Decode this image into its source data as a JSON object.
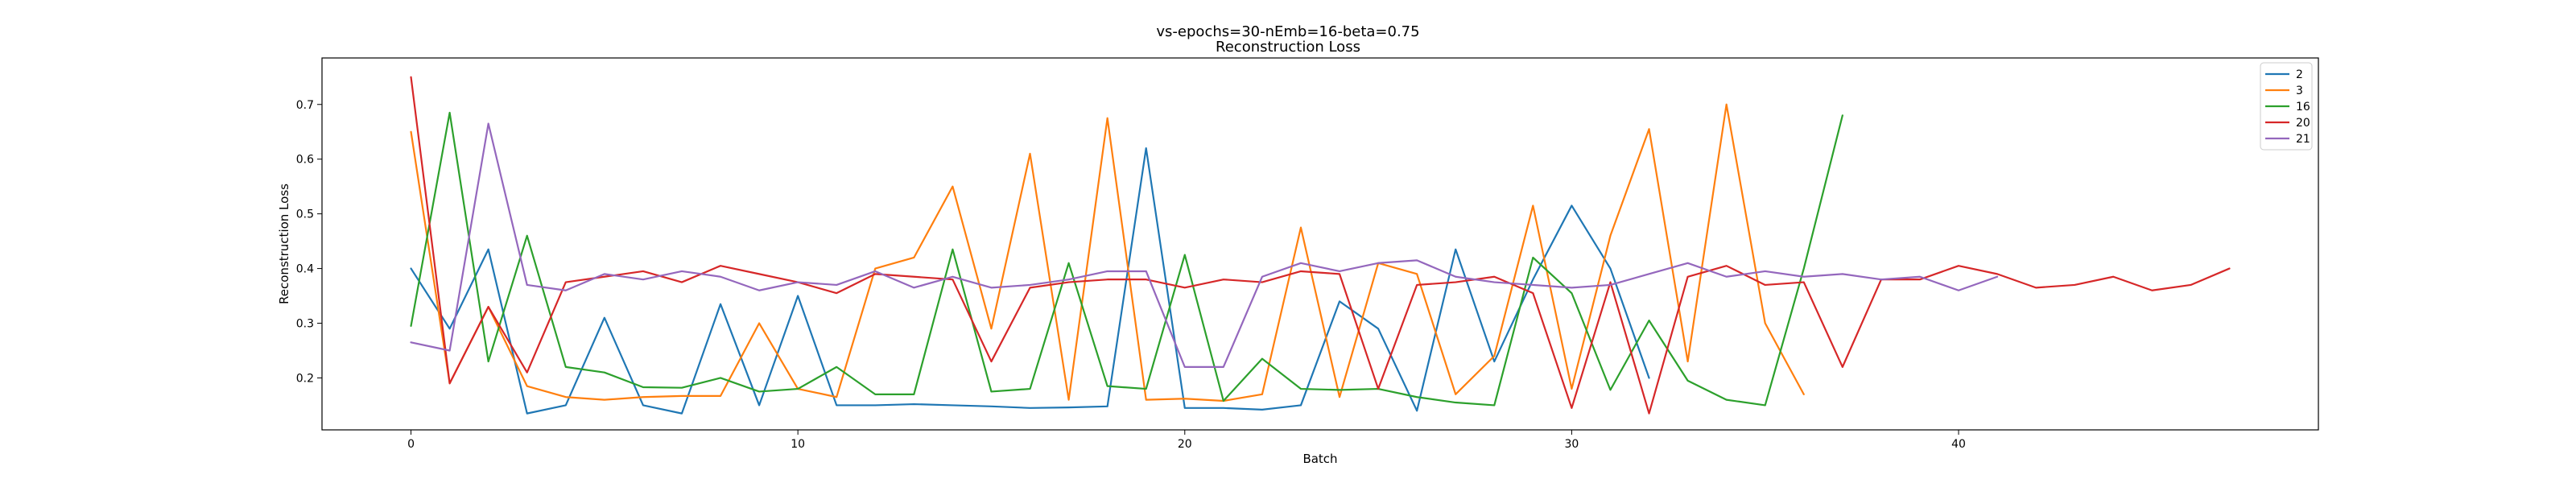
{
  "chart_data": {
    "type": "line",
    "title": "vs-epochs=30-nEmb=16-beta=0.75",
    "subtitle": "Reconstruction Loss",
    "xlabel": "Batch",
    "ylabel": "Reconstruction Loss",
    "xlim": [
      -2.3,
      49.3
    ],
    "ylim": [
      0.105,
      0.785
    ],
    "xticks": [
      0,
      10,
      20,
      30,
      40
    ],
    "yticks": [
      0.2,
      0.3,
      0.4,
      0.5,
      0.6,
      0.7
    ],
    "grid": false,
    "legend_position": "top-right",
    "series": [
      {
        "name": "2",
        "color": "#1f77b4",
        "values": [
          0.4,
          0.29,
          0.435,
          0.135,
          0.15,
          0.31,
          0.15,
          0.135,
          0.335,
          0.15,
          0.35,
          0.15,
          0.15,
          0.152,
          0.15,
          0.148,
          0.145,
          0.146,
          0.148,
          0.62,
          0.145,
          0.145,
          0.142,
          0.15,
          0.34,
          0.29,
          0.14,
          0.435,
          0.23,
          0.38,
          0.515,
          0.4,
          0.2
        ]
      },
      {
        "name": "3",
        "color": "#ff7f0e",
        "values": [
          0.65,
          0.19,
          0.33,
          0.185,
          0.165,
          0.16,
          0.165,
          0.167,
          0.167,
          0.3,
          0.18,
          0.165,
          0.4,
          0.42,
          0.55,
          0.29,
          0.61,
          0.16,
          0.675,
          0.16,
          0.162,
          0.158,
          0.17,
          0.475,
          0.165,
          0.41,
          0.39,
          0.17,
          0.24,
          0.515,
          0.18,
          0.46,
          0.655,
          0.23,
          0.7,
          0.3,
          0.17
        ]
      },
      {
        "name": "16",
        "color": "#2ca02c",
        "values": [
          0.295,
          0.685,
          0.23,
          0.46,
          0.22,
          0.21,
          0.183,
          0.182,
          0.2,
          0.175,
          0.18,
          0.22,
          0.17,
          0.17,
          0.435,
          0.175,
          0.18,
          0.41,
          0.185,
          0.18,
          0.425,
          0.158,
          0.235,
          0.18,
          0.178,
          0.18,
          0.165,
          0.155,
          0.15,
          0.42,
          0.355,
          0.178,
          0.305,
          0.195,
          0.16,
          0.15,
          0.4,
          0.68
        ]
      },
      {
        "name": "20",
        "color": "#d62728",
        "values": [
          0.75,
          0.19,
          0.33,
          0.21,
          0.375,
          0.385,
          0.395,
          0.375,
          0.405,
          0.39,
          0.375,
          0.355,
          0.39,
          0.385,
          0.38,
          0.23,
          0.365,
          0.375,
          0.38,
          0.38,
          0.365,
          0.38,
          0.375,
          0.395,
          0.39,
          0.18,
          0.37,
          0.375,
          0.385,
          0.355,
          0.145,
          0.375,
          0.135,
          0.385,
          0.405,
          0.37,
          0.375,
          0.22,
          0.38,
          0.38,
          0.405,
          0.39,
          0.365,
          0.37,
          0.385,
          0.36,
          0.37,
          0.4
        ]
      },
      {
        "name": "21",
        "color": "#9467bd",
        "values": [
          0.265,
          0.25,
          0.665,
          0.37,
          0.36,
          0.39,
          0.38,
          0.395,
          0.385,
          0.36,
          0.375,
          0.37,
          0.395,
          0.365,
          0.385,
          0.365,
          0.37,
          0.38,
          0.395,
          0.395,
          0.22,
          0.22,
          0.385,
          0.41,
          0.395,
          0.41,
          0.415,
          0.385,
          0.375,
          0.37,
          0.365,
          0.37,
          0.39,
          0.41,
          0.385,
          0.395,
          0.385,
          0.39,
          0.38,
          0.385,
          0.36,
          0.385
        ]
      }
    ]
  }
}
